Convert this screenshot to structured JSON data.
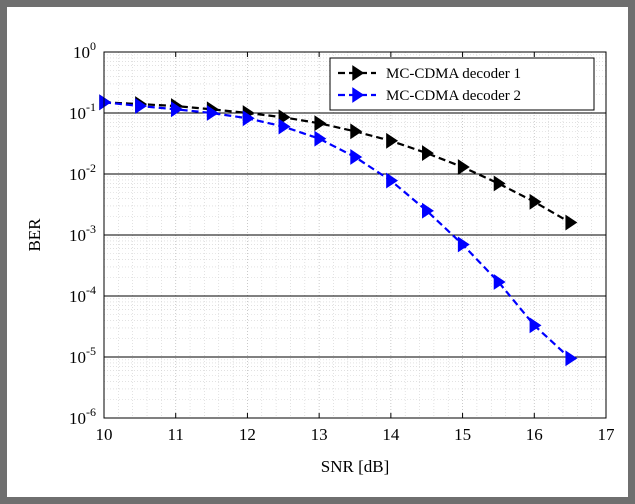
{
  "chart_data": {
    "type": "line",
    "title": "",
    "xlabel": "SNR  [dB]",
    "ylabel": "BER",
    "xlim": [
      10,
      17
    ],
    "ylim": [
      1e-06,
      1
    ],
    "yscale": "log",
    "grid": true,
    "x_ticks": [
      "10",
      "11",
      "12",
      "13",
      "14",
      "15",
      "16",
      "17"
    ],
    "y_ticks": [
      {
        "base": "10",
        "exp": "0",
        "value": 1
      },
      {
        "base": "10",
        "exp": "-1",
        "value": 0.1
      },
      {
        "base": "10",
        "exp": "-2",
        "value": 0.01
      },
      {
        "base": "10",
        "exp": "-3",
        "value": 0.001
      },
      {
        "base": "10",
        "exp": "-4",
        "value": 0.0001
      },
      {
        "base": "10",
        "exp": "-5",
        "value": 1e-05
      },
      {
        "base": "10",
        "exp": "-6",
        "value": 1e-06
      }
    ],
    "legend_position": "top-right",
    "series": [
      {
        "name": "MC-CDMA decoder 1",
        "color": "#000000",
        "line_style": "dashed",
        "marker": "triangle-right",
        "x": [
          10,
          10.5,
          11,
          11.5,
          12,
          12.5,
          13,
          13.5,
          14,
          14.5,
          15,
          15.5,
          16,
          16.5
        ],
        "y": [
          0.15,
          0.14,
          0.13,
          0.115,
          0.1,
          0.085,
          0.068,
          0.05,
          0.035,
          0.022,
          0.013,
          0.007,
          0.0035,
          0.0016
        ]
      },
      {
        "name": "MC-CDMA decoder 2",
        "color": "#0000ff",
        "line_style": "dashed",
        "marker": "triangle-right",
        "x": [
          10,
          10.5,
          11,
          11.5,
          12,
          12.5,
          13,
          13.5,
          14,
          14.5,
          15,
          15.5,
          16,
          16.5
        ],
        "y": [
          0.15,
          0.13,
          0.115,
          0.1,
          0.082,
          0.06,
          0.038,
          0.019,
          0.0078,
          0.0025,
          0.0007,
          0.00017,
          3.3e-05,
          9.5e-06
        ]
      }
    ]
  }
}
